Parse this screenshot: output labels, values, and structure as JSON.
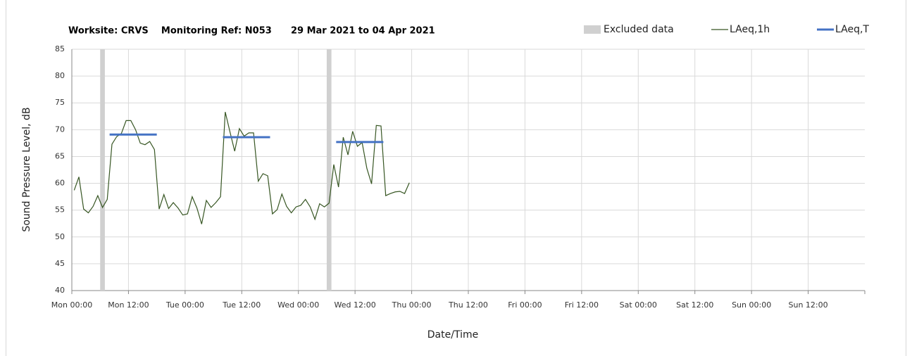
{
  "chart_data": {
    "type": "line",
    "title": "Worksite: CRVS    Monitoring Ref: N053      29 Mar 2021 to 04 Apr 2021",
    "x_label": "Date/Time",
    "y_label": "Sound Pressure Level, dB",
    "xlim": [
      0,
      168
    ],
    "xticks": [
      {
        "value": 0,
        "label": "Mon 00:00"
      },
      {
        "value": 12,
        "label": "Mon 12:00"
      },
      {
        "value": 24,
        "label": "Tue 00:00"
      },
      {
        "value": 36,
        "label": "Tue 12:00"
      },
      {
        "value": 48,
        "label": "Wed 00:00"
      },
      {
        "value": 60,
        "label": "Wed 12:00"
      },
      {
        "value": 72,
        "label": "Thu 00:00"
      },
      {
        "value": 84,
        "label": "Thu 12:00"
      },
      {
        "value": 96,
        "label": "Fri 00:00"
      },
      {
        "value": 108,
        "label": "Fri 12:00"
      },
      {
        "value": 120,
        "label": "Sat 00:00"
      },
      {
        "value": 132,
        "label": "Sat 12:00"
      },
      {
        "value": 144,
        "label": "Sun 00:00"
      },
      {
        "value": 156,
        "label": "Sun 12:00"
      }
    ],
    "ylim": [
      40,
      85
    ],
    "yticks": [
      40,
      45,
      50,
      55,
      60,
      65,
      70,
      75,
      80,
      85
    ],
    "grid": true,
    "legend": "top-right",
    "excluded": {
      "name": "Excluded data",
      "color": "#d0d0d0",
      "ranges": [
        [
          6,
          7
        ],
        [
          54,
          55
        ]
      ]
    },
    "series": [
      {
        "name": "LAeq,1h",
        "color": "#375623",
        "x": [
          0.5,
          1.5,
          2.5,
          3.5,
          4.5,
          5.5,
          6.5,
          7.5,
          8.5,
          9.5,
          10.5,
          11.5,
          12.5,
          13.5,
          14.5,
          15.5,
          16.5,
          17.5,
          18.5,
          19.5,
          20.5,
          21.5,
          22.5,
          23.5,
          24.5,
          25.5,
          26.5,
          27.5,
          28.5,
          29.5,
          30.5,
          31.5,
          32.5,
          33.5,
          34.5,
          35.5,
          36.5,
          37.5,
          38.5,
          39.5,
          40.5,
          41.5,
          42.5,
          43.5,
          44.5,
          45.5,
          46.5,
          47.5,
          48.5,
          49.5,
          50.5,
          51.5,
          52.5,
          53.5,
          54.5,
          55.5,
          56.5,
          57.5,
          58.5,
          59.5,
          60.5,
          61.5,
          62.5,
          63.5,
          64.5,
          65.5,
          66.5,
          67.5,
          68.5,
          69.5,
          70.5,
          71.5
        ],
        "values": [
          58.7,
          61.2,
          55.2,
          54.5,
          55.7,
          57.7,
          55.5,
          57.0,
          67.3,
          68.7,
          69.3,
          71.7,
          71.7,
          70.0,
          67.5,
          67.2,
          67.8,
          66.3,
          55.2,
          57.9,
          55.3,
          56.4,
          55.4,
          54.1,
          54.3,
          57.5,
          55.4,
          52.4,
          56.8,
          55.5,
          56.4,
          57.5,
          73.3,
          69.6,
          66.0,
          70.2,
          68.8,
          69.4,
          69.4,
          60.4,
          61.8,
          61.4,
          54.3,
          55.1,
          58.0,
          55.7,
          54.5,
          55.6,
          55.9,
          57.0,
          55.6,
          53.3,
          56.2,
          55.6,
          56.3,
          63.5,
          59.3,
          68.6,
          65.3,
          69.7,
          66.9,
          67.6,
          62.8,
          59.9,
          70.8,
          70.7,
          57.7,
          58.1,
          58.4,
          58.5,
          58.1,
          60.1
        ]
      },
      {
        "name": "LAeq,T",
        "color": "#4472c4",
        "segments": [
          {
            "start": 8,
            "end": 18,
            "value": 69.1
          },
          {
            "start": 32,
            "end": 42,
            "value": 68.6
          },
          {
            "start": 56,
            "end": 66,
            "value": 67.7
          }
        ]
      }
    ]
  }
}
